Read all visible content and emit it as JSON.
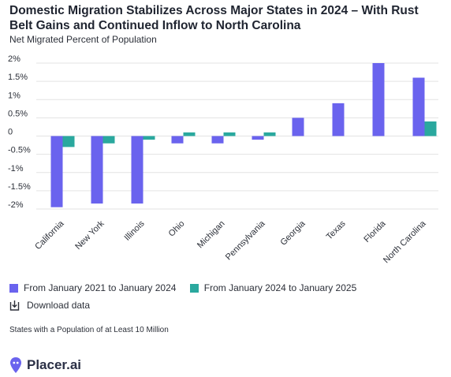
{
  "title": "Domestic Migration Stabilizes Across Major States in 2024 – With Rust Belt Gains and Continued Inflow to North Carolina",
  "subtitle": "Net Migrated Percent of Population",
  "legend": {
    "series_a": "From January 2021 to January 2024",
    "series_b": "From January 2024 to January 2025"
  },
  "download_label": "Download data",
  "footnote": "States with a Population of at Least 10 Million",
  "brand_name": "Placer.ai",
  "colors": {
    "series_a": "#6a63ee",
    "series_b": "#2aa89e",
    "grid": "#e3e3e3",
    "brand": "#6a63ee"
  },
  "icons": {
    "download": "download-icon",
    "logo": "map-pin-logo-icon"
  },
  "chart_data": {
    "type": "bar",
    "title": "Domestic Migration Stabilizes Across Major States in 2024 – With Rust Belt Gains and Continued Inflow to North Carolina",
    "ylabel": "Net Migrated Percent of Population",
    "xlabel": "",
    "categories": [
      "California",
      "New York",
      "Illinois",
      "Ohio",
      "Michigan",
      "Pennsylvania",
      "Georgia",
      "Texas",
      "Florida",
      "North Carolina"
    ],
    "series": [
      {
        "name": "From January 2021 to January 2024",
        "values": [
          -1.95,
          -1.85,
          -1.85,
          -0.2,
          -0.2,
          -0.1,
          0.5,
          0.9,
          2.0,
          1.6
        ]
      },
      {
        "name": "From January 2024 to January 2025",
        "values": [
          -0.3,
          -0.2,
          -0.1,
          0.1,
          0.1,
          0.1,
          0,
          0,
          0,
          0.4
        ]
      }
    ],
    "ylim": [
      -2,
      2
    ],
    "yticks": [
      2,
      1.5,
      1,
      0.5,
      0,
      -0.5,
      -1,
      -1.5,
      -2
    ],
    "ytick_labels": [
      "2%",
      "1.5%",
      "1%",
      "0.5%",
      "0",
      "-0.5%",
      "-1%",
      "-1.5%",
      "-2%"
    ],
    "grid": true,
    "legend_position": "bottom-left"
  }
}
